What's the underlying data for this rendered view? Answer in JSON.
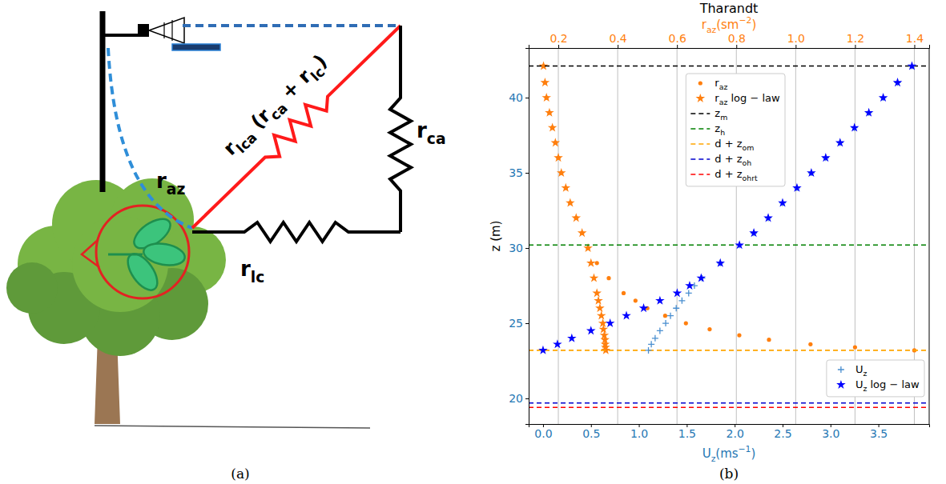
{
  "diagram": {
    "r_az": [
      {
        "text": "r"
      },
      {
        "text": "az",
        "sub": true
      }
    ],
    "r_lca": [
      {
        "text": "r"
      },
      {
        "text": "lca",
        "sub": true
      },
      {
        "text": " (r"
      },
      {
        "text": "ca",
        "sub": true
      },
      {
        "text": " + r"
      },
      {
        "text": "lc",
        "sub": true
      },
      {
        "text": ")"
      }
    ],
    "r_ca": [
      {
        "text": "r"
      },
      {
        "text": "ca",
        "sub": true
      }
    ],
    "r_lc": [
      {
        "text": "r"
      },
      {
        "text": "lc",
        "sub": true
      }
    ]
  },
  "captions": [
    "(a)",
    "(b)"
  ],
  "chart_data": {
    "type": "scatter",
    "title": "Tharandt",
    "xlabel": [
      {
        "text": "U"
      },
      {
        "text": "z",
        "sub": true
      },
      {
        "text": "(ms"
      },
      {
        "text": "−1",
        "sup": true
      },
      {
        "text": ")"
      }
    ],
    "x2label": [
      {
        "text": "r"
      },
      {
        "text": "az",
        "sub": true
      },
      {
        "text": "(sm"
      },
      {
        "text": "−2",
        "sup": true
      },
      {
        "text": ")"
      }
    ],
    "ylabel": "z (m)",
    "xlim": [
      -0.15,
      4.03
    ],
    "xticks": [
      {
        "value": 0,
        "label": "0.0"
      },
      0.5,
      {
        "value": 1,
        "label": "1.0"
      },
      1.5,
      {
        "value": 2,
        "label": "2.0"
      },
      2.5,
      {
        "value": 3,
        "label": "3.0"
      },
      3.5
    ],
    "x2lim": [
      0.1,
      1.45
    ],
    "x2ticks": [
      0.2,
      0.4,
      0.6,
      0.8,
      {
        "value": 1,
        "label": "1.0"
      },
      1.2,
      1.4
    ],
    "ylim": [
      18.3,
      43.3
    ],
    "yticks": [
      20,
      25,
      30,
      35,
      40
    ],
    "grid": true,
    "legend": "upper center",
    "series": [
      {
        "name": [
          {
            "text": "r"
          },
          {
            "text": "az",
            "sub": true
          }
        ],
        "type": "scatter",
        "marker": "dot",
        "color": "#ff7f0e",
        "axis": "x2",
        "x": [
          0.15,
          0.155,
          0.16,
          0.17,
          0.18,
          0.19,
          0.2,
          0.21,
          0.225,
          0.24,
          0.26,
          0.28,
          0.3,
          0.33,
          0.37,
          0.42,
          0.46,
          0.5,
          0.56,
          0.63,
          0.71,
          0.81,
          0.91,
          1.05,
          1.2,
          1.4
        ],
        "y": [
          42.1,
          41,
          40,
          39,
          38,
          37,
          36,
          35,
          34,
          33,
          32,
          31,
          30,
          29,
          28,
          27,
          26.5,
          26,
          25.5,
          25,
          24.6,
          24.2,
          23.9,
          23.6,
          23.4,
          23.2
        ]
      },
      {
        "name": [
          {
            "text": "r"
          },
          {
            "text": "az",
            "sub": true
          },
          {
            "text": " log − law"
          }
        ],
        "type": "scatter",
        "marker": "star",
        "color": "#ff7f0e",
        "axis": "x2",
        "x": [
          0.15,
          0.155,
          0.16,
          0.17,
          0.18,
          0.19,
          0.2,
          0.21,
          0.225,
          0.24,
          0.26,
          0.28,
          0.3,
          0.31,
          0.32,
          0.33,
          0.335,
          0.34,
          0.345,
          0.35,
          0.352,
          0.355,
          0.357,
          0.358,
          0.359,
          0.36
        ],
        "y": [
          42.1,
          41,
          40,
          39,
          38,
          37,
          36,
          35,
          34,
          33,
          32,
          31,
          30,
          29,
          28,
          27,
          26.5,
          26,
          25.5,
          25,
          24.6,
          24.2,
          23.9,
          23.6,
          23.4,
          23.2
        ]
      },
      {
        "name": [
          {
            "text": "z"
          },
          {
            "text": "m",
            "sub": true
          }
        ],
        "type": "hline",
        "line_style": "dashed",
        "color": "#000000",
        "value": 42.1
      },
      {
        "name": [
          {
            "text": "z"
          },
          {
            "text": "h",
            "sub": true
          }
        ],
        "type": "hline",
        "line_style": "dashed",
        "color": "#008000",
        "value": 30.2
      },
      {
        "name": [
          {
            "text": "d + z"
          },
          {
            "text": "om",
            "sub": true
          }
        ],
        "type": "hline",
        "line_style": "dashed",
        "color": "#ffa500",
        "value": 23.2
      },
      {
        "name": [
          {
            "text": "d + z"
          },
          {
            "text": "oh",
            "sub": true
          }
        ],
        "type": "hline",
        "line_style": "dashed",
        "color": "#0000cd",
        "value": 19.7
      },
      {
        "name": [
          {
            "text": "d + z"
          },
          {
            "text": "ohrt",
            "sub": true
          }
        ],
        "type": "hline",
        "line_style": "dashed",
        "color": "#ff0000",
        "value": 19.4
      },
      {
        "name": [
          {
            "text": "U"
          },
          {
            "text": "z",
            "sub": true
          }
        ],
        "type": "scatter",
        "marker": "plus",
        "color": "#4a8fd0",
        "legend": "lower right",
        "x": [
          1.1,
          1.13,
          1.17,
          1.22,
          1.28,
          1.33,
          1.39,
          1.45,
          1.52,
          1.58,
          1.66,
          1.85,
          2.05,
          2.2,
          2.35,
          2.5,
          2.65,
          2.8,
          2.95,
          3.1,
          3.25,
          3.4,
          3.55,
          3.7,
          3.85
        ],
        "y": [
          23.2,
          23.6,
          24,
          24.5,
          25,
          25.5,
          26,
          26.5,
          27,
          27.5,
          28,
          29,
          30.2,
          31,
          32,
          33,
          34,
          35,
          36,
          37,
          38,
          39,
          40,
          41,
          42.1
        ]
      },
      {
        "name": [
          {
            "text": "U"
          },
          {
            "text": "z",
            "sub": true
          },
          {
            "text": " log − law"
          }
        ],
        "type": "scatter",
        "marker": "star",
        "color": "#0000ff",
        "legend": "lower right",
        "x": [
          0,
          0.15,
          0.3,
          0.5,
          0.7,
          0.87,
          1.05,
          1.22,
          1.4,
          1.53,
          1.65,
          1.85,
          2.05,
          2.2,
          2.35,
          2.5,
          2.65,
          2.8,
          2.95,
          3.1,
          3.25,
          3.4,
          3.55,
          3.7,
          3.85
        ],
        "y": [
          23.2,
          23.6,
          24,
          24.5,
          25,
          25.5,
          26,
          26.5,
          27,
          27.5,
          28,
          29,
          30.2,
          31,
          32,
          33,
          34,
          35,
          36,
          37,
          38,
          39,
          40,
          41,
          42.1
        ]
      }
    ]
  }
}
